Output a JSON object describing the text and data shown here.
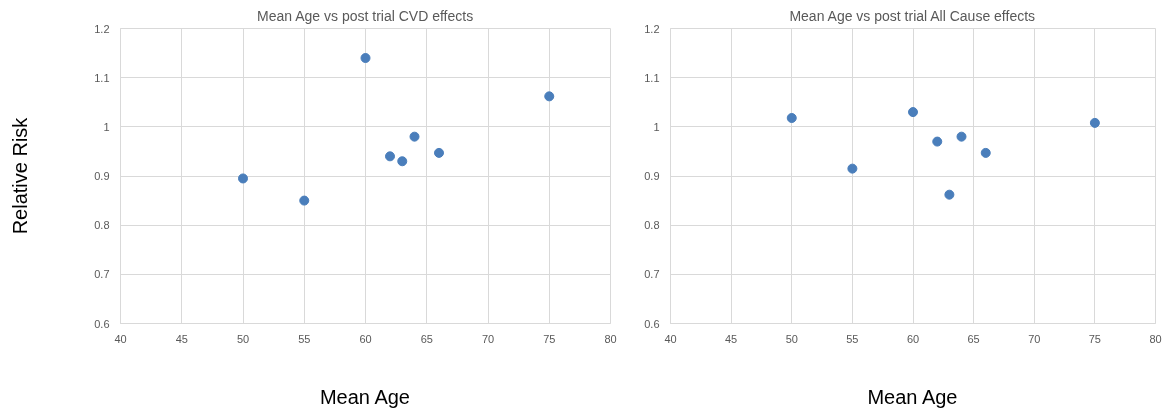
{
  "chart_data": [
    {
      "type": "scatter",
      "title": "Mean Age vs post trial CVD effects",
      "xlabel": "Mean Age",
      "ylabel": "Relative Risk",
      "x": [
        50,
        55,
        60,
        62,
        63,
        64,
        66,
        75
      ],
      "series": [
        {
          "color": "#4a7ebb",
          "values": [
            0.895,
            0.85,
            1.14,
            0.94,
            0.93,
            0.98,
            0.947,
            1.062
          ]
        }
      ],
      "xlim": [
        40,
        80
      ],
      "xticks": [
        40,
        45,
        50,
        55,
        60,
        65,
        70,
        75,
        80
      ],
      "ylim": [
        0.6,
        1.2
      ],
      "yticks": [
        0.6,
        0.7,
        0.8,
        0.9,
        1,
        1.1,
        1.2
      ],
      "grid": true,
      "marker": "circle"
    },
    {
      "type": "scatter",
      "title": "Mean Age vs post trial All Cause effects",
      "xlabel": "Mean Age",
      "x": [
        50,
        55,
        60,
        62,
        63,
        64,
        66,
        75
      ],
      "series": [
        {
          "color": "#4a7ebb",
          "values": [
            1.018,
            0.915,
            1.03,
            0.97,
            0.862,
            0.98,
            0.947,
            1.008
          ]
        }
      ],
      "xlim": [
        40,
        80
      ],
      "xticks": [
        40,
        45,
        50,
        55,
        60,
        65,
        70,
        75,
        80
      ],
      "ylim": [
        0.6,
        1.2
      ],
      "yticks": [
        0.6,
        0.7,
        0.8,
        0.9,
        1,
        1.1,
        1.2
      ],
      "grid": true,
      "marker": "circle"
    }
  ]
}
